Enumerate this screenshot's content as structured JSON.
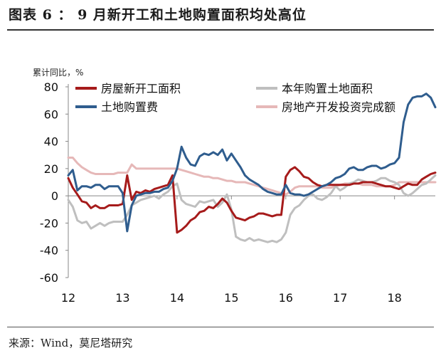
{
  "header": {
    "title": "图表 6 ： 9 月新开工和土地购置面积均处高位"
  },
  "footer": {
    "source": "来源：Wind，莫尼塔研究"
  },
  "chart_data": {
    "type": "line",
    "ylabel": "累计同比，%",
    "ylim": [
      -60,
      80
    ],
    "yticks": [
      -60,
      -40,
      -20,
      0,
      20,
      40,
      60,
      80
    ],
    "xlim": [
      12,
      18.75
    ],
    "xticks": [
      12,
      13,
      14,
      15,
      16,
      17,
      18
    ],
    "xtick_labels": [
      "12",
      "13",
      "14",
      "15",
      "16",
      "17",
      "18"
    ],
    "grid": false,
    "legend": "top, two columns",
    "series": [
      {
        "name": "房屋新开工面积",
        "color": "#a61b1b",
        "x": [
          12.0,
          12.083,
          12.167,
          12.25,
          12.333,
          12.417,
          12.5,
          12.583,
          12.667,
          12.75,
          12.833,
          12.917,
          13.0,
          13.083,
          13.167,
          13.25,
          13.333,
          13.417,
          13.5,
          13.583,
          13.667,
          13.75,
          13.833,
          13.917,
          14.0,
          14.083,
          14.167,
          14.25,
          14.333,
          14.417,
          14.5,
          14.583,
          14.667,
          14.75,
          14.833,
          14.917,
          15.0,
          15.083,
          15.167,
          15.25,
          15.333,
          15.417,
          15.5,
          15.583,
          15.667,
          15.75,
          15.833,
          15.917,
          16.0,
          16.083,
          16.167,
          16.25,
          16.333,
          16.417,
          16.5,
          16.583,
          16.667,
          16.75,
          16.833,
          16.917,
          17.0,
          17.083,
          17.167,
          17.25,
          17.333,
          17.417,
          17.5,
          17.583,
          17.667,
          17.75,
          17.833,
          17.917,
          18.0,
          18.083,
          18.167,
          18.25,
          18.333,
          18.417,
          18.5,
          18.583,
          18.667,
          18.75
        ],
        "values": [
          13,
          6,
          1,
          -4,
          -5,
          -9,
          -7,
          -9,
          -9,
          -7,
          -7,
          -7,
          -6,
          15,
          -3,
          3,
          2,
          4,
          3,
          5,
          6,
          7,
          8,
          15,
          -27,
          -25,
          -22,
          -18,
          -16,
          -12,
          -11,
          -8,
          -9,
          -6,
          -2,
          -5,
          -11,
          -16,
          -17,
          -18,
          -16,
          -15,
          -13,
          -13,
          -14,
          -15,
          -14,
          -14,
          14,
          19,
          21,
          18,
          14,
          13,
          10,
          8,
          7,
          8,
          8,
          8,
          8,
          8,
          8,
          9,
          9,
          10,
          10,
          10,
          9,
          8,
          7,
          7,
          6,
          5,
          7,
          9,
          8,
          8,
          12,
          14,
          16,
          17
        ]
      },
      {
        "name": "本年购置土地面积",
        "color": "#bfbfbf",
        "x": [
          12.0,
          12.083,
          12.167,
          12.25,
          12.333,
          12.417,
          12.5,
          12.583,
          12.667,
          12.75,
          12.833,
          12.917,
          13.0,
          13.083,
          13.167,
          13.25,
          13.333,
          13.417,
          13.5,
          13.583,
          13.667,
          13.75,
          13.833,
          13.917,
          14.0,
          14.083,
          14.167,
          14.25,
          14.333,
          14.417,
          14.5,
          14.583,
          14.667,
          14.75,
          14.833,
          14.917,
          15.0,
          15.083,
          15.167,
          15.25,
          15.333,
          15.417,
          15.5,
          15.583,
          15.667,
          15.75,
          15.833,
          15.917,
          16.0,
          16.083,
          16.167,
          16.25,
          16.333,
          16.417,
          16.5,
          16.583,
          16.667,
          16.75,
          16.833,
          16.917,
          17.0,
          17.083,
          17.167,
          17.25,
          17.333,
          17.417,
          17.5,
          17.583,
          17.667,
          17.75,
          17.833,
          17.917,
          18.0,
          18.083,
          18.167,
          18.25,
          18.333,
          18.417,
          18.5,
          18.583,
          18.667,
          18.75
        ],
        "values": [
          -3,
          -8,
          -18,
          -20,
          -19,
          -24,
          -22,
          -20,
          -22,
          -20,
          -19,
          -19,
          -19,
          -14,
          -7,
          -5,
          -3,
          -2,
          -1,
          0,
          -2,
          1,
          3,
          7,
          9,
          -3,
          -6,
          -7,
          -8,
          -4,
          -5,
          -4,
          -3,
          -8,
          -5,
          1,
          -10,
          -30,
          -32,
          -33,
          -31,
          -33,
          -32,
          -33,
          -34,
          -33,
          -34,
          -32,
          -27,
          -14,
          -9,
          -7,
          -3,
          0,
          1,
          -2,
          -3,
          -1,
          2,
          7,
          4,
          6,
          9,
          10,
          12,
          11,
          10,
          10,
          11,
          13,
          13,
          11,
          10,
          8,
          2,
          0,
          2,
          5,
          8,
          9,
          12,
          15
        ]
      },
      {
        "name": "土地购置费",
        "color": "#2f5d8e",
        "x": [
          12.0,
          12.083,
          12.167,
          12.25,
          12.333,
          12.417,
          12.5,
          12.583,
          12.667,
          12.75,
          12.833,
          12.917,
          13.0,
          13.083,
          13.167,
          13.25,
          13.333,
          13.417,
          13.5,
          13.583,
          13.667,
          13.75,
          13.833,
          13.917,
          14.0,
          14.083,
          14.167,
          14.25,
          14.333,
          14.417,
          14.5,
          14.583,
          14.667,
          14.75,
          14.833,
          14.917,
          15.0,
          15.083,
          15.167,
          15.25,
          15.333,
          15.417,
          15.5,
          15.583,
          15.667,
          15.75,
          15.833,
          15.917,
          16.0,
          16.083,
          16.167,
          16.25,
          16.333,
          16.417,
          16.5,
          16.583,
          16.667,
          16.75,
          16.833,
          16.917,
          17.0,
          17.083,
          17.167,
          17.25,
          17.333,
          17.417,
          17.5,
          17.583,
          17.667,
          17.75,
          17.833,
          17.917,
          18.0,
          18.083,
          18.167,
          18.25,
          18.333,
          18.417,
          18.5,
          18.583,
          18.667,
          18.75
        ],
        "values": [
          15,
          19,
          4,
          7,
          7,
          6,
          8,
          8,
          5,
          7,
          7,
          7,
          2,
          -26,
          -7,
          0,
          1,
          2,
          2,
          3,
          3,
          5,
          6,
          11,
          20,
          36,
          28,
          23,
          22,
          29,
          31,
          30,
          32,
          30,
          34,
          26,
          31,
          26,
          21,
          15,
          12,
          10,
          8,
          5,
          3,
          2,
          1,
          1,
          8,
          2,
          1,
          1,
          0,
          1,
          3,
          5,
          7,
          8,
          10,
          13,
          14,
          16,
          20,
          21,
          19,
          19,
          21,
          22,
          22,
          20,
          21,
          23,
          24,
          28,
          54,
          67,
          72,
          73,
          73,
          75,
          72,
          65
        ]
      },
      {
        "name": "房地产开发投资完成额",
        "color": "#e6b8b8",
        "x": [
          12.0,
          12.083,
          12.167,
          12.25,
          12.333,
          12.417,
          12.5,
          12.583,
          12.667,
          12.75,
          12.833,
          12.917,
          13.0,
          13.083,
          13.167,
          13.25,
          13.333,
          13.417,
          13.5,
          13.583,
          13.667,
          13.75,
          13.833,
          13.917,
          14.0,
          14.083,
          14.167,
          14.25,
          14.333,
          14.417,
          14.5,
          14.583,
          14.667,
          14.75,
          14.833,
          14.917,
          15.0,
          15.083,
          15.167,
          15.25,
          15.333,
          15.417,
          15.5,
          15.583,
          15.667,
          15.75,
          15.833,
          15.917,
          16.0,
          16.083,
          16.167,
          16.25,
          16.333,
          16.417,
          16.5,
          16.583,
          16.667,
          16.75,
          16.833,
          16.917,
          17.0,
          17.083,
          17.167,
          17.25,
          17.333,
          17.417,
          17.5,
          17.583,
          17.667,
          17.75,
          17.833,
          17.917,
          18.0,
          18.083,
          18.167,
          18.25,
          18.333,
          18.417,
          18.5,
          18.583,
          18.667,
          18.75
        ],
        "values": [
          28,
          28,
          24,
          21,
          19,
          17,
          16,
          16,
          16,
          16,
          16,
          17,
          17,
          17,
          23,
          20,
          20,
          20,
          20,
          20,
          20,
          20,
          20,
          20,
          20,
          19,
          18,
          17,
          16,
          15,
          14,
          14,
          13,
          13,
          12,
          11,
          11,
          10,
          10,
          10,
          9,
          8,
          7,
          6,
          5,
          4,
          3,
          2,
          1,
          3,
          6,
          7,
          7,
          7,
          7,
          7,
          6,
          6,
          6,
          7,
          8,
          9,
          9,
          9,
          9,
          8,
          8,
          8,
          7,
          7,
          7,
          7,
          8,
          10,
          10,
          10,
          10,
          10,
          10,
          10,
          10,
          10
        ]
      }
    ]
  }
}
